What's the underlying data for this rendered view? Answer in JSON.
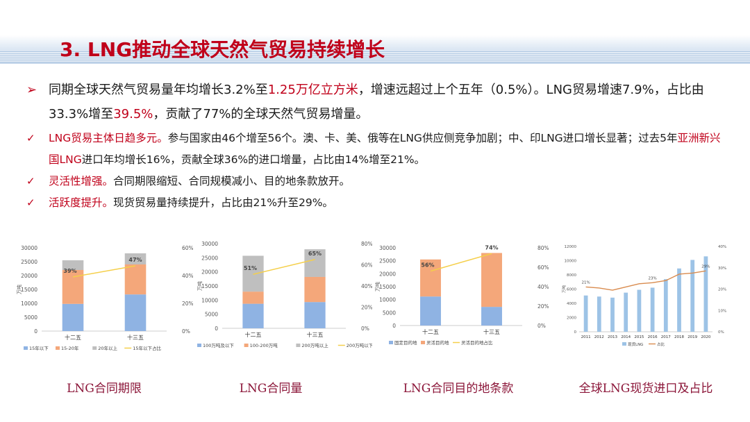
{
  "title": "3. LNG推动全球天然气贸易持续增长",
  "bullets": {
    "b1": {
      "mark": "➢",
      "p1": "同期全球天然气贸易量年均增长3.2%至",
      "r1": "1.25万亿立方米",
      "p2": "，增速远超过上个五年（0.5%）。LNG贸易增速7.9%，占比由33.3%增至",
      "r2": "39.5%",
      "p3": "，贡献了77%的全球天然气贸易增量。"
    },
    "b2": {
      "mark": "✓",
      "r1": "LNG贸易主体日趋多元。",
      "p1": "参与国家由46个增至56个。澳、卡、美、俄等在LNG供应侧竞争加剧；中、印LNG进口增长显著；过去5年",
      "r2": "亚洲新兴国LNG",
      "p2": "进口年均增长16%，贡献全球36%的进口增量，占比由14%增至21%。"
    },
    "b3": {
      "mark": "✓",
      "r1": "灵活性增强。",
      "p1": "合同期限缩短、合同规模减小、目的地条款放开。"
    },
    "b4": {
      "mark": "✓",
      "r1": "活跃度提升。",
      "p1": "现货贸易量持续提升，占比由21%升至29%。"
    }
  },
  "captions": [
    "LNG合同期限",
    "LNG合同量",
    "LNG合同目的地条款",
    "全球LNG现货进口及占比"
  ],
  "colors": {
    "blue": "#8fb3e3",
    "orange": "#f4a77a",
    "gray": "#bfbfbf",
    "yellow": "#f5cf4a",
    "bar_blue": "#9dc3e6",
    "line_orange": "#d98b4e"
  },
  "chart_data": [
    {
      "type": "bar",
      "stacked": true,
      "ylabel": "万吨",
      "categories": [
        "十二五",
        "十三五"
      ],
      "ylim": [
        0,
        30000
      ],
      "yticks": [
        "0",
        "5000",
        "10000",
        "15000",
        "20000",
        "25000",
        "30000"
      ],
      "y2ticks": [
        "0%",
        "20%",
        "40%",
        "60%"
      ],
      "y2lim": [
        0,
        0.6
      ],
      "series": [
        {
          "name": "15年以下",
          "values": [
            9800,
            13200
          ]
        },
        {
          "name": "15-20年",
          "values": [
            12200,
            10800
          ]
        },
        {
          "name": "20年以上",
          "values": [
            3500,
            4000
          ]
        }
      ],
      "line": {
        "name": "15年以下占比",
        "values": [
          0.39,
          0.47
        ]
      },
      "line_labels": [
        "39%",
        "47%"
      ]
    },
    {
      "type": "bar",
      "stacked": true,
      "ylabel": "万吨",
      "categories": [
        "十二五",
        "十三五"
      ],
      "ylim": [
        0,
        30000
      ],
      "yticks": [
        "0",
        "5000",
        "10000",
        "15000",
        "20000",
        "25000",
        "30000"
      ],
      "y2ticks": [
        "0%",
        "20%",
        "40%",
        "60%",
        "80%"
      ],
      "y2lim": [
        0,
        0.8
      ],
      "series": [
        {
          "name": "100万吨及以下",
          "values": [
            8700,
            9300
          ]
        },
        {
          "name": "100-200万吨",
          "values": [
            4300,
            8900
          ]
        },
        {
          "name": "200万吨以上",
          "values": [
            12700,
            9800
          ]
        }
      ],
      "line": {
        "name": "200万吨以下占比",
        "values": [
          0.51,
          0.65
        ]
      },
      "line_labels": [
        "51%",
        "65%"
      ]
    },
    {
      "type": "bar",
      "stacked": true,
      "ylabel": "万吨",
      "categories": [
        "十二五",
        "十三五"
      ],
      "ylim": [
        0,
        30000
      ],
      "yticks": [
        "0",
        "5000",
        "10000",
        "15000",
        "20000",
        "25000",
        "30000"
      ],
      "y2ticks": [
        "0%",
        "20%",
        "40%",
        "60%",
        "80%"
      ],
      "y2lim": [
        0,
        0.8
      ],
      "series": [
        {
          "name": "固定目的地",
          "values": [
            11200,
            7200
          ]
        },
        {
          "name": "灵活目的地",
          "values": [
            14300,
            20800
          ]
        }
      ],
      "line": {
        "name": "灵活目的地占比",
        "values": [
          0.56,
          0.74
        ]
      },
      "line_labels": [
        "56%",
        "74%"
      ]
    },
    {
      "type": "bar",
      "ylabel": "万吨",
      "categories": [
        "2011",
        "2012",
        "2013",
        "2014",
        "2015",
        "2016",
        "2017",
        "2018",
        "2019",
        "2020"
      ],
      "ylim": [
        0,
        12000
      ],
      "yticks": [
        "0",
        "2000",
        "4000",
        "6000",
        "8000",
        "10000",
        "12000"
      ],
      "y2ticks": [
        "0%",
        "10%",
        "20%",
        "30%",
        "40%"
      ],
      "y2lim": [
        0,
        0.4
      ],
      "series": [
        {
          "name": "现货LNG",
          "values": [
            5100,
            4950,
            4800,
            5500,
            5900,
            6200,
            7400,
            8900,
            10100,
            10600
          ]
        }
      ],
      "line": {
        "name": "占比",
        "values": [
          0.21,
          0.205,
          0.195,
          0.21,
          0.225,
          0.23,
          0.24,
          0.27,
          0.275,
          0.285
        ]
      },
      "line_labels": [
        "21%",
        "",
        "",
        "",
        "",
        "23%",
        "",
        "",
        "",
        "29%"
      ]
    }
  ]
}
